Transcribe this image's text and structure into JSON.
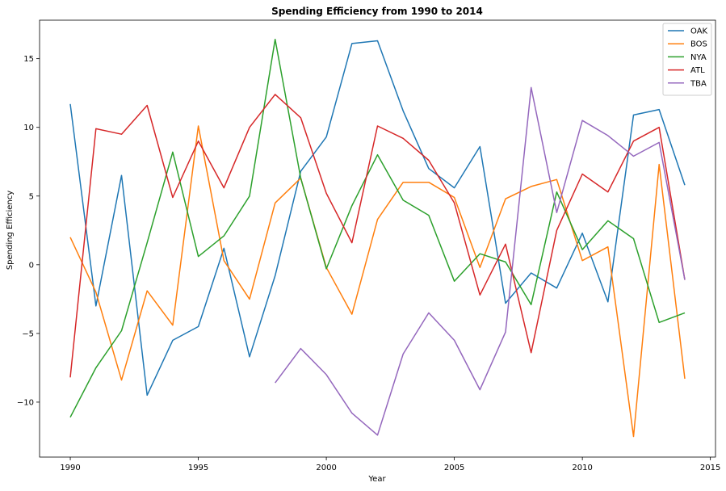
{
  "chart_data": {
    "type": "line",
    "title": "Spending Efficiency from 1990 to 2014",
    "xlabel": "Year",
    "ylabel": "Spending Efficiency",
    "xlim": [
      1988.8,
      2015.2
    ],
    "ylim": [
      -14.0,
      17.8
    ],
    "xticks": [
      1990,
      1995,
      2000,
      2005,
      2010,
      2015
    ],
    "xtick_labels": [
      "1990",
      "1995",
      "2000",
      "2005",
      "2010",
      "2015"
    ],
    "yticks": [
      -10,
      -5,
      0,
      5,
      10,
      15
    ],
    "ytick_labels": [
      "−10",
      "−5",
      "0",
      "5",
      "10",
      "15"
    ],
    "grid": false,
    "legend_position": "top-right",
    "series": [
      {
        "name": "OAK",
        "color": "#1f77b4",
        "x": [
          1990,
          1991,
          1992,
          1993,
          1994,
          1995,
          1996,
          1997,
          1998,
          1999,
          2000,
          2001,
          2002,
          2003,
          2004,
          2005,
          2006,
          2007,
          2008,
          2009,
          2010,
          2011,
          2012,
          2013,
          2014
        ],
        "y": [
          11.7,
          -3.0,
          6.5,
          -9.5,
          -5.5,
          -4.5,
          1.2,
          -6.7,
          -0.8,
          6.8,
          9.3,
          16.1,
          16.3,
          11.2,
          7.0,
          5.6,
          8.6,
          -2.8,
          -0.6,
          -1.7,
          2.3,
          -2.7,
          10.9,
          11.3,
          5.8
        ]
      },
      {
        "name": "BOS",
        "color": "#ff7f0e",
        "x": [
          1990,
          1991,
          1992,
          1993,
          1994,
          1995,
          1996,
          1997,
          1998,
          1999,
          2000,
          2001,
          2002,
          2003,
          2004,
          2005,
          2006,
          2007,
          2008,
          2009,
          2010,
          2011,
          2012,
          2013,
          2014
        ],
        "y": [
          2.0,
          -2.0,
          -8.4,
          -1.9,
          -4.4,
          10.1,
          0.3,
          -2.5,
          4.5,
          6.3,
          -0.2,
          -3.6,
          3.3,
          6.0,
          6.0,
          4.9,
          -0.2,
          4.8,
          5.7,
          6.2,
          0.3,
          1.3,
          -12.5,
          7.3,
          -8.3
        ]
      },
      {
        "name": "NYA",
        "color": "#2ca02c",
        "x": [
          1990,
          1991,
          1992,
          1993,
          1994,
          1995,
          1996,
          1997,
          1998,
          1999,
          2000,
          2001,
          2002,
          2003,
          2004,
          2005,
          2006,
          2007,
          2008,
          2009,
          2010,
          2011,
          2012,
          2013,
          2014
        ],
        "y": [
          -11.1,
          -7.5,
          -4.8,
          1.6,
          8.2,
          0.6,
          2.1,
          5.0,
          16.4,
          6.3,
          -0.3,
          4.3,
          8.0,
          4.7,
          3.6,
          -1.2,
          0.8,
          0.2,
          -2.9,
          5.3,
          1.1,
          3.2,
          1.9,
          -4.2,
          -3.5
        ]
      },
      {
        "name": "ATL",
        "color": "#d62728",
        "x": [
          1990,
          1991,
          1992,
          1993,
          1994,
          1995,
          1996,
          1997,
          1998,
          1999,
          2000,
          2001,
          2002,
          2003,
          2004,
          2005,
          2006,
          2007,
          2008,
          2009,
          2010,
          2011,
          2012,
          2013,
          2014
        ],
        "y": [
          -8.2,
          9.9,
          9.5,
          11.6,
          4.9,
          9.0,
          5.6,
          10.0,
          12.4,
          10.7,
          5.2,
          1.6,
          10.1,
          9.2,
          7.6,
          4.5,
          -2.2,
          1.5,
          -6.4,
          2.5,
          6.6,
          5.3,
          9.0,
          10.0,
          -1.1
        ]
      },
      {
        "name": "TBA",
        "color": "#9467bd",
        "x": [
          1998,
          1999,
          2000,
          2001,
          2002,
          2003,
          2004,
          2005,
          2006,
          2007,
          2008,
          2009,
          2010,
          2011,
          2012,
          2013,
          2014
        ],
        "y": [
          -8.6,
          -6.1,
          -8.0,
          -10.8,
          -12.4,
          -6.5,
          -3.5,
          -5.5,
          -9.1,
          -4.9,
          12.9,
          3.8,
          10.5,
          9.4,
          7.9,
          8.9,
          -1.1
        ]
      }
    ]
  }
}
